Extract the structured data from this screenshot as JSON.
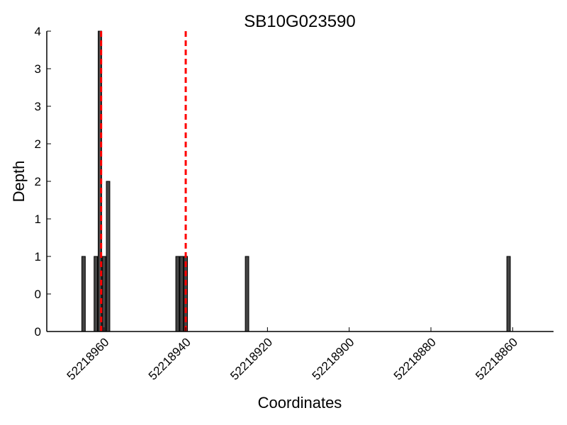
{
  "chart_data": {
    "type": "bar",
    "title": "SB10G023590",
    "xlabel": "Coordinates",
    "ylabel": "Depth",
    "x_reversed": true,
    "xlim": [
      52218974,
      52218850
    ],
    "ylim": [
      0,
      4
    ],
    "x_ticks": [
      52218960,
      52218940,
      52218920,
      52218900,
      52218880,
      52218860
    ],
    "x_tick_labels": [
      "52218960",
      "52218940",
      "52218920",
      "52218900",
      "52218880",
      "52218860"
    ],
    "y_ticks": [
      0,
      0.5,
      1,
      1.5,
      2,
      2.5,
      3,
      3.5,
      4
    ],
    "y_tick_labels": [
      "0",
      "0",
      "1",
      "1",
      "2",
      "2",
      "3",
      "3",
      "4"
    ],
    "bar_color": "#444444",
    "reference_line_color": "#ff0000",
    "series": [
      {
        "x": [
          52218965,
          52218962,
          52218961,
          52218960,
          52218959,
          52218942,
          52218941,
          52218940,
          52218925,
          52218861
        ],
        "values": [
          1,
          1,
          4,
          1,
          2,
          1,
          1,
          1,
          1,
          1
        ]
      }
    ],
    "reference_lines": [
      52218960.7,
      52218940
    ]
  }
}
